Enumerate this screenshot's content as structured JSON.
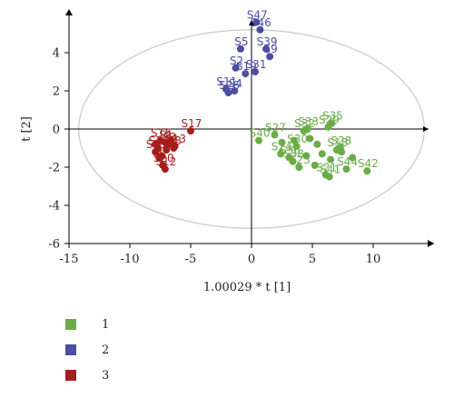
{
  "chart_data": {
    "type": "scatter",
    "xlabel": "1.00029 * t [1]",
    "ylabel": "t [2]",
    "xlim": [
      -15,
      15
    ],
    "ylim": [
      -6,
      6
    ],
    "xticks": [
      -15,
      -10,
      -5,
      0,
      5,
      10
    ],
    "yticks": [
      -6,
      -4,
      -2,
      0,
      2,
      4
    ],
    "grid": false,
    "legend_position": "bottom-left",
    "ellipse": {
      "center": [
        0,
        0
      ],
      "rx": 14.2,
      "ry": 5.2
    },
    "series": [
      {
        "name": "1",
        "color": "#6aac47",
        "points": [
          {
            "label": "S40",
            "x": 0.6,
            "y": -0.6
          },
          {
            "label": "S27",
            "x": 1.9,
            "y": -0.3
          },
          {
            "label": "S24",
            "x": 2.4,
            "y": -1.3
          },
          {
            "label": "S36",
            "x": 3.1,
            "y": -1.5
          },
          {
            "label": "S38",
            "x": 3.4,
            "y": -1.7
          },
          {
            "label": "S23",
            "x": 3.9,
            "y": -2.0
          },
          {
            "label": "S33",
            "x": 4.6,
            "y": 0.0
          },
          {
            "label": "S32",
            "x": 4.3,
            "y": -0.1
          },
          {
            "label": "S30",
            "x": 3.7,
            "y": -0.9
          },
          {
            "label": "S35",
            "x": 6.6,
            "y": 0.3
          },
          {
            "label": "S29",
            "x": 6.3,
            "y": 0.1
          },
          {
            "label": "S28",
            "x": 7.3,
            "y": -1.0
          },
          {
            "label": "S18",
            "x": 7.0,
            "y": -1.1
          },
          {
            "label": "S44",
            "x": 7.8,
            "y": -2.1
          },
          {
            "label": "S41",
            "x": 6.4,
            "y": -2.5
          },
          {
            "label": "S21",
            "x": 6.1,
            "y": -2.4
          },
          {
            "label": "S42",
            "x": 9.5,
            "y": -2.2
          },
          {
            "x": 2.5,
            "y": -0.7
          },
          {
            "x": 3.5,
            "y": -0.6
          },
          {
            "x": 4.8,
            "y": -0.5
          },
          {
            "x": 5.4,
            "y": -0.8
          },
          {
            "x": 5.8,
            "y": -1.3
          },
          {
            "x": 6.5,
            "y": -1.6
          },
          {
            "x": 7.4,
            "y": -1.2
          },
          {
            "x": 8.3,
            "y": -1.5
          },
          {
            "x": 5.2,
            "y": -1.9
          },
          {
            "x": 4.5,
            "y": -1.4
          }
        ]
      },
      {
        "name": "2",
        "color": "#4b4ea3",
        "points": [
          {
            "label": "S46",
            "x": 0.7,
            "y": 5.2
          },
          {
            "label": "S47",
            "x": 0.4,
            "y": 5.6
          },
          {
            "label": "S39",
            "x": 1.2,
            "y": 4.2
          },
          {
            "label": "S5",
            "x": -0.9,
            "y": 4.2
          },
          {
            "label": "S9",
            "x": 1.5,
            "y": 3.8
          },
          {
            "label": "S2",
            "x": -1.3,
            "y": 3.2
          },
          {
            "label": "S31",
            "x": 0.3,
            "y": 3.0
          },
          {
            "label": "S19",
            "x": -0.5,
            "y": 2.9
          },
          {
            "label": "S11",
            "x": -2.1,
            "y": 2.1
          },
          {
            "label": "S4",
            "x": -1.4,
            "y": 2.0
          },
          {
            "label": "S26",
            "x": -1.9,
            "y": 1.9
          }
        ]
      },
      {
        "name": "3",
        "color": "#a51d1d",
        "points": [
          {
            "label": "S17",
            "x": -5.0,
            "y": -0.1
          },
          {
            "label": "S16",
            "x": -7.5,
            "y": -0.6
          },
          {
            "label": "S1",
            "x": -7.1,
            "y": -0.7
          },
          {
            "label": "S3",
            "x": -6.8,
            "y": -0.8
          },
          {
            "label": "S13",
            "x": -6.3,
            "y": -0.9
          },
          {
            "label": "S8",
            "x": -6.4,
            "y": -1.0
          },
          {
            "label": "S14",
            "x": -7.7,
            "y": -1.0
          },
          {
            "label": "S15",
            "x": -7.9,
            "y": -1.2
          },
          {
            "label": "S6",
            "x": -7.4,
            "y": -1.4
          },
          {
            "label": "S20",
            "x": -7.3,
            "y": -1.9
          },
          {
            "label": "S12",
            "x": -7.1,
            "y": -2.1
          },
          {
            "x": -7.9,
            "y": -0.8
          },
          {
            "x": -7.6,
            "y": -1.5
          },
          {
            "x": -7.0,
            "y": -1.1
          },
          {
            "x": -6.6,
            "y": -0.6
          }
        ]
      }
    ]
  }
}
